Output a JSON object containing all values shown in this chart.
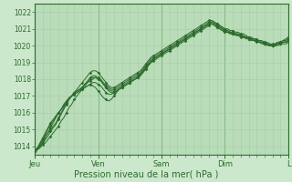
{
  "title": "",
  "xlabel": "Pression niveau de la mer( hPa )",
  "ylabel": "",
  "bg_color": "#cce8cc",
  "plot_bg_color": "#b8ddb8",
  "line_color": "#2d6a2d",
  "grid_major_color": "#88bb88",
  "grid_minor_color": "#a8cca8",
  "ylim": [
    1013.5,
    1022.5
  ],
  "yticks": [
    1014,
    1015,
    1016,
    1017,
    1018,
    1019,
    1020,
    1021,
    1022
  ],
  "days": [
    "Jeu",
    "Ven",
    "Sam",
    "Dim",
    "L"
  ],
  "day_positions": [
    0,
    24,
    48,
    72,
    96
  ],
  "n_points": 97,
  "series": [
    [
      1013.7,
      1013.8,
      1013.9,
      1014.1,
      1014.2,
      1014.4,
      1014.6,
      1014.8,
      1015.0,
      1015.2,
      1015.5,
      1015.7,
      1016.0,
      1016.3,
      1016.5,
      1016.8,
      1017.0,
      1017.2,
      1017.4,
      1017.5,
      1017.6,
      1017.7,
      1017.6,
      1017.5,
      1017.3,
      1017.1,
      1016.9,
      1016.8,
      1016.7,
      1016.8,
      1017.0,
      1017.2,
      1017.4,
      1017.5,
      1017.6,
      1017.7,
      1017.8,
      1017.9,
      1018.0,
      1018.1,
      1018.2,
      1018.4,
      1018.6,
      1018.8,
      1019.0,
      1019.2,
      1019.3,
      1019.4,
      1019.5,
      1019.6,
      1019.7,
      1019.8,
      1019.9,
      1020.0,
      1020.1,
      1020.2,
      1020.3,
      1020.4,
      1020.5,
      1020.6,
      1020.7,
      1020.8,
      1020.9,
      1021.0,
      1021.1,
      1021.2,
      1021.3,
      1021.3,
      1021.2,
      1021.1,
      1021.0,
      1020.9,
      1020.8,
      1020.8,
      1020.7,
      1020.7,
      1020.7,
      1020.6,
      1020.6,
      1020.5,
      1020.5,
      1020.4,
      1020.4,
      1020.3,
      1020.3,
      1020.2,
      1020.2,
      1020.1,
      1020.1,
      1020.0,
      1020.0,
      1020.0,
      1020.1,
      1020.1,
      1020.2,
      1020.2,
      1020.3
    ],
    [
      1013.7,
      1013.8,
      1014.0,
      1014.2,
      1014.4,
      1014.6,
      1014.9,
      1015.1,
      1015.3,
      1015.6,
      1015.9,
      1016.2,
      1016.5,
      1016.8,
      1017.0,
      1017.2,
      1017.4,
      1017.6,
      1017.8,
      1018.0,
      1018.2,
      1018.4,
      1018.5,
      1018.5,
      1018.4,
      1018.2,
      1018.0,
      1017.8,
      1017.6,
      1017.5,
      1017.5,
      1017.6,
      1017.7,
      1017.8,
      1017.9,
      1018.0,
      1018.1,
      1018.2,
      1018.3,
      1018.4,
      1018.5,
      1018.7,
      1018.9,
      1019.1,
      1019.3,
      1019.4,
      1019.5,
      1019.6,
      1019.7,
      1019.8,
      1019.9,
      1020.0,
      1020.1,
      1020.2,
      1020.3,
      1020.4,
      1020.5,
      1020.6,
      1020.7,
      1020.8,
      1020.9,
      1021.0,
      1021.1,
      1021.2,
      1021.3,
      1021.4,
      1021.5,
      1021.5,
      1021.4,
      1021.3,
      1021.2,
      1021.1,
      1021.0,
      1020.9,
      1020.8,
      1020.8,
      1020.7,
      1020.7,
      1020.6,
      1020.6,
      1020.5,
      1020.5,
      1020.4,
      1020.4,
      1020.3,
      1020.3,
      1020.2,
      1020.2,
      1020.1,
      1020.1,
      1020.0,
      1020.1,
      1020.2,
      1020.2,
      1020.3,
      1020.4,
      1020.5
    ],
    [
      1013.7,
      1013.9,
      1014.1,
      1014.3,
      1014.6,
      1014.8,
      1015.0,
      1015.2,
      1015.4,
      1015.7,
      1016.0,
      1016.3,
      1016.6,
      1016.8,
      1017.0,
      1017.1,
      1017.2,
      1017.3,
      1017.4,
      1017.5,
      1017.6,
      1017.7,
      1017.8,
      1017.8,
      1017.7,
      1017.6,
      1017.4,
      1017.2,
      1017.1,
      1017.1,
      1017.2,
      1017.3,
      1017.4,
      1017.5,
      1017.6,
      1017.7,
      1017.8,
      1017.9,
      1018.0,
      1018.1,
      1018.3,
      1018.5,
      1018.7,
      1018.9,
      1019.0,
      1019.2,
      1019.3,
      1019.4,
      1019.5,
      1019.6,
      1019.7,
      1019.8,
      1019.9,
      1020.0,
      1020.1,
      1020.2,
      1020.3,
      1020.4,
      1020.5,
      1020.6,
      1020.7,
      1020.8,
      1020.9,
      1021.0,
      1021.1,
      1021.2,
      1021.3,
      1021.4,
      1021.3,
      1021.2,
      1021.1,
      1021.0,
      1020.9,
      1020.8,
      1020.8,
      1020.7,
      1020.7,
      1020.6,
      1020.6,
      1020.5,
      1020.5,
      1020.4,
      1020.4,
      1020.3,
      1020.3,
      1020.2,
      1020.2,
      1020.1,
      1020.1,
      1020.0,
      1020.0,
      1020.1,
      1020.1,
      1020.2,
      1020.2,
      1020.3,
      1020.4
    ],
    [
      1013.7,
      1013.8,
      1014.0,
      1014.2,
      1014.5,
      1014.8,
      1015.1,
      1015.4,
      1015.7,
      1016.0,
      1016.2,
      1016.5,
      1016.7,
      1016.9,
      1017.0,
      1017.1,
      1017.2,
      1017.3,
      1017.5,
      1017.7,
      1017.9,
      1018.1,
      1018.2,
      1018.2,
      1018.1,
      1018.0,
      1017.8,
      1017.6,
      1017.5,
      1017.4,
      1017.4,
      1017.5,
      1017.6,
      1017.7,
      1017.8,
      1017.9,
      1018.0,
      1018.1,
      1018.2,
      1018.3,
      1018.4,
      1018.6,
      1018.8,
      1019.0,
      1019.2,
      1019.3,
      1019.4,
      1019.5,
      1019.6,
      1019.7,
      1019.8,
      1019.9,
      1020.0,
      1020.1,
      1020.2,
      1020.3,
      1020.4,
      1020.5,
      1020.6,
      1020.7,
      1020.8,
      1020.9,
      1021.0,
      1021.1,
      1021.2,
      1021.3,
      1021.4,
      1021.5,
      1021.4,
      1021.3,
      1021.2,
      1021.1,
      1021.0,
      1021.0,
      1020.9,
      1020.9,
      1020.8,
      1020.8,
      1020.7,
      1020.7,
      1020.6,
      1020.5,
      1020.5,
      1020.4,
      1020.4,
      1020.3,
      1020.3,
      1020.2,
      1020.2,
      1020.1,
      1020.1,
      1020.1,
      1020.2,
      1020.2,
      1020.3,
      1020.3,
      1020.4
    ],
    [
      1013.7,
      1013.9,
      1014.1,
      1014.4,
      1014.7,
      1015.0,
      1015.3,
      1015.5,
      1015.8,
      1016.0,
      1016.2,
      1016.4,
      1016.6,
      1016.8,
      1017.0,
      1017.2,
      1017.3,
      1017.4,
      1017.5,
      1017.6,
      1017.8,
      1017.9,
      1018.0,
      1018.1,
      1018.0,
      1017.9,
      1017.7,
      1017.5,
      1017.4,
      1017.3,
      1017.3,
      1017.4,
      1017.5,
      1017.6,
      1017.7,
      1017.8,
      1017.9,
      1018.0,
      1018.1,
      1018.2,
      1018.3,
      1018.5,
      1018.7,
      1018.9,
      1019.1,
      1019.2,
      1019.3,
      1019.4,
      1019.5,
      1019.6,
      1019.7,
      1019.8,
      1019.9,
      1020.0,
      1020.1,
      1020.2,
      1020.3,
      1020.4,
      1020.5,
      1020.6,
      1020.7,
      1020.8,
      1020.9,
      1021.0,
      1021.1,
      1021.2,
      1021.3,
      1021.4,
      1021.3,
      1021.2,
      1021.1,
      1021.0,
      1020.9,
      1020.9,
      1020.8,
      1020.8,
      1020.7,
      1020.7,
      1020.6,
      1020.5,
      1020.5,
      1020.4,
      1020.4,
      1020.3,
      1020.3,
      1020.2,
      1020.2,
      1020.1,
      1020.1,
      1020.0,
      1020.0,
      1020.0,
      1020.1,
      1020.1,
      1020.2,
      1020.2,
      1020.3
    ],
    [
      1013.7,
      1013.9,
      1014.2,
      1014.5,
      1014.8,
      1015.1,
      1015.4,
      1015.6,
      1015.8,
      1016.0,
      1016.2,
      1016.4,
      1016.6,
      1016.8,
      1017.0,
      1017.2,
      1017.3,
      1017.4,
      1017.5,
      1017.7,
      1017.8,
      1018.0,
      1018.1,
      1018.1,
      1018.0,
      1017.9,
      1017.7,
      1017.5,
      1017.3,
      1017.2,
      1017.2,
      1017.3,
      1017.4,
      1017.5,
      1017.6,
      1017.7,
      1017.8,
      1017.9,
      1018.0,
      1018.1,
      1018.2,
      1018.4,
      1018.6,
      1018.8,
      1019.0,
      1019.1,
      1019.2,
      1019.3,
      1019.4,
      1019.5,
      1019.6,
      1019.7,
      1019.8,
      1019.9,
      1020.0,
      1020.1,
      1020.2,
      1020.3,
      1020.4,
      1020.5,
      1020.6,
      1020.7,
      1020.8,
      1020.9,
      1021.0,
      1021.1,
      1021.2,
      1021.3,
      1021.2,
      1021.1,
      1021.0,
      1020.9,
      1020.8,
      1020.8,
      1020.7,
      1020.7,
      1020.6,
      1020.6,
      1020.5,
      1020.5,
      1020.4,
      1020.4,
      1020.3,
      1020.3,
      1020.2,
      1020.2,
      1020.1,
      1020.1,
      1020.0,
      1020.0,
      1020.0,
      1020.0,
      1020.0,
      1020.1,
      1020.1,
      1020.1,
      1020.2
    ]
  ]
}
